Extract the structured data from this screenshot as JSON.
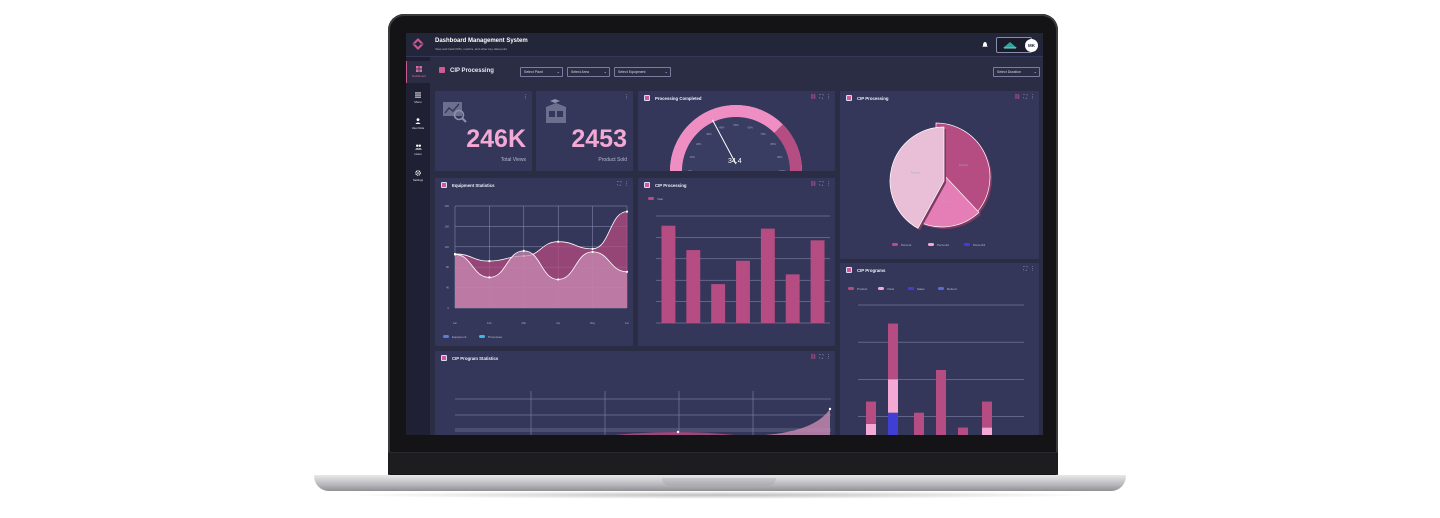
{
  "app": {
    "title": "Dashboard Management System",
    "subtitle": "View and track KPIs, metrics, and other key data point",
    "user_initials": "MK"
  },
  "sidebar": {
    "items": [
      {
        "label": "Dashboard",
        "icon": "dashboard-icon",
        "active": true
      },
      {
        "label": "Menu",
        "icon": "menu-icon"
      },
      {
        "label": "User Role",
        "icon": "user-icon"
      },
      {
        "label": "Users",
        "icon": "users-icon"
      },
      {
        "label": "Settings",
        "icon": "gear-icon"
      }
    ]
  },
  "page": {
    "title": "CIP Processing",
    "filters": [
      "Select Plant",
      "Select Area",
      "Select Equipment"
    ],
    "duration": "Select Duration"
  },
  "kpis": [
    {
      "value": "246K",
      "label": "Total Views",
      "icon": "chart-search-icon"
    },
    {
      "value": "2453",
      "label": "Product Sold",
      "icon": "boxes-icon"
    }
  ],
  "gauge": {
    "title": "Processing Completed",
    "value": "34.4",
    "ticks": [
      "0%",
      "10%",
      "20%",
      "30%",
      "40%",
      "50%",
      "60%",
      "70%",
      "80%",
      "90%",
      "100%"
    ]
  },
  "pie": {
    "title": "CIP Processing",
    "slices": [
      {
        "label": "Percent",
        "value": 38,
        "color": "#b54c82"
      },
      {
        "label": "Percent",
        "value": 20,
        "color": "#e57db7"
      },
      {
        "label": "Percent",
        "value": 42,
        "color": "#e8bfd6"
      }
    ],
    "legend": [
      "Percent",
      "Percent2",
      "Percent3"
    ],
    "legend_colors": [
      "#b54c82",
      "#f3a9d3",
      "#3f3fd6"
    ]
  },
  "equipment": {
    "title": "Equipment Statistics",
    "legend": [
      "Equipment",
      "Processes"
    ]
  },
  "bars": {
    "title": "CIP Processing",
    "legend": "Year"
  },
  "programs": {
    "title": "CIP Programs",
    "legend": [
      "Product",
      "Visits",
      "Sales",
      "Refund"
    ],
    "legend_colors": [
      "#b54c82",
      "#f3a9d3",
      "#3f3fd6",
      "#5a6ad9"
    ]
  },
  "stats": {
    "title": "CIP Program Statistics"
  },
  "chart_data": [
    {
      "type": "area",
      "title": "Equipment Statistics",
      "x": [
        "Jan",
        "Feb",
        "Mar",
        "Apr",
        "May",
        "Jun"
      ],
      "series": [
        {
          "name": "Equipment",
          "values": [
            105,
            60,
            112,
            56,
            110,
            71
          ]
        },
        {
          "name": "Processes",
          "values": [
            106,
            92,
            102,
            130,
            116,
            189
          ]
        }
      ]
    },
    {
      "type": "bar",
      "title": "CIP Processing",
      "series": [
        {
          "name": "Year",
          "values": [
            100,
            75,
            40,
            64,
            97,
            50,
            85
          ]
        }
      ],
      "ylim": [
        0,
        110
      ]
    },
    {
      "type": "bar",
      "title": "CIP Programs",
      "stacked": true,
      "series": [
        {
          "name": "Product",
          "values": [
            12,
            30,
            12,
            35,
            4,
            14
          ]
        },
        {
          "name": "Visits",
          "values": [
            6,
            18,
            0,
            0,
            0,
            4
          ]
        },
        {
          "name": "Sales",
          "values": [
            0,
            12,
            0,
            0,
            0,
            0
          ]
        }
      ]
    }
  ]
}
